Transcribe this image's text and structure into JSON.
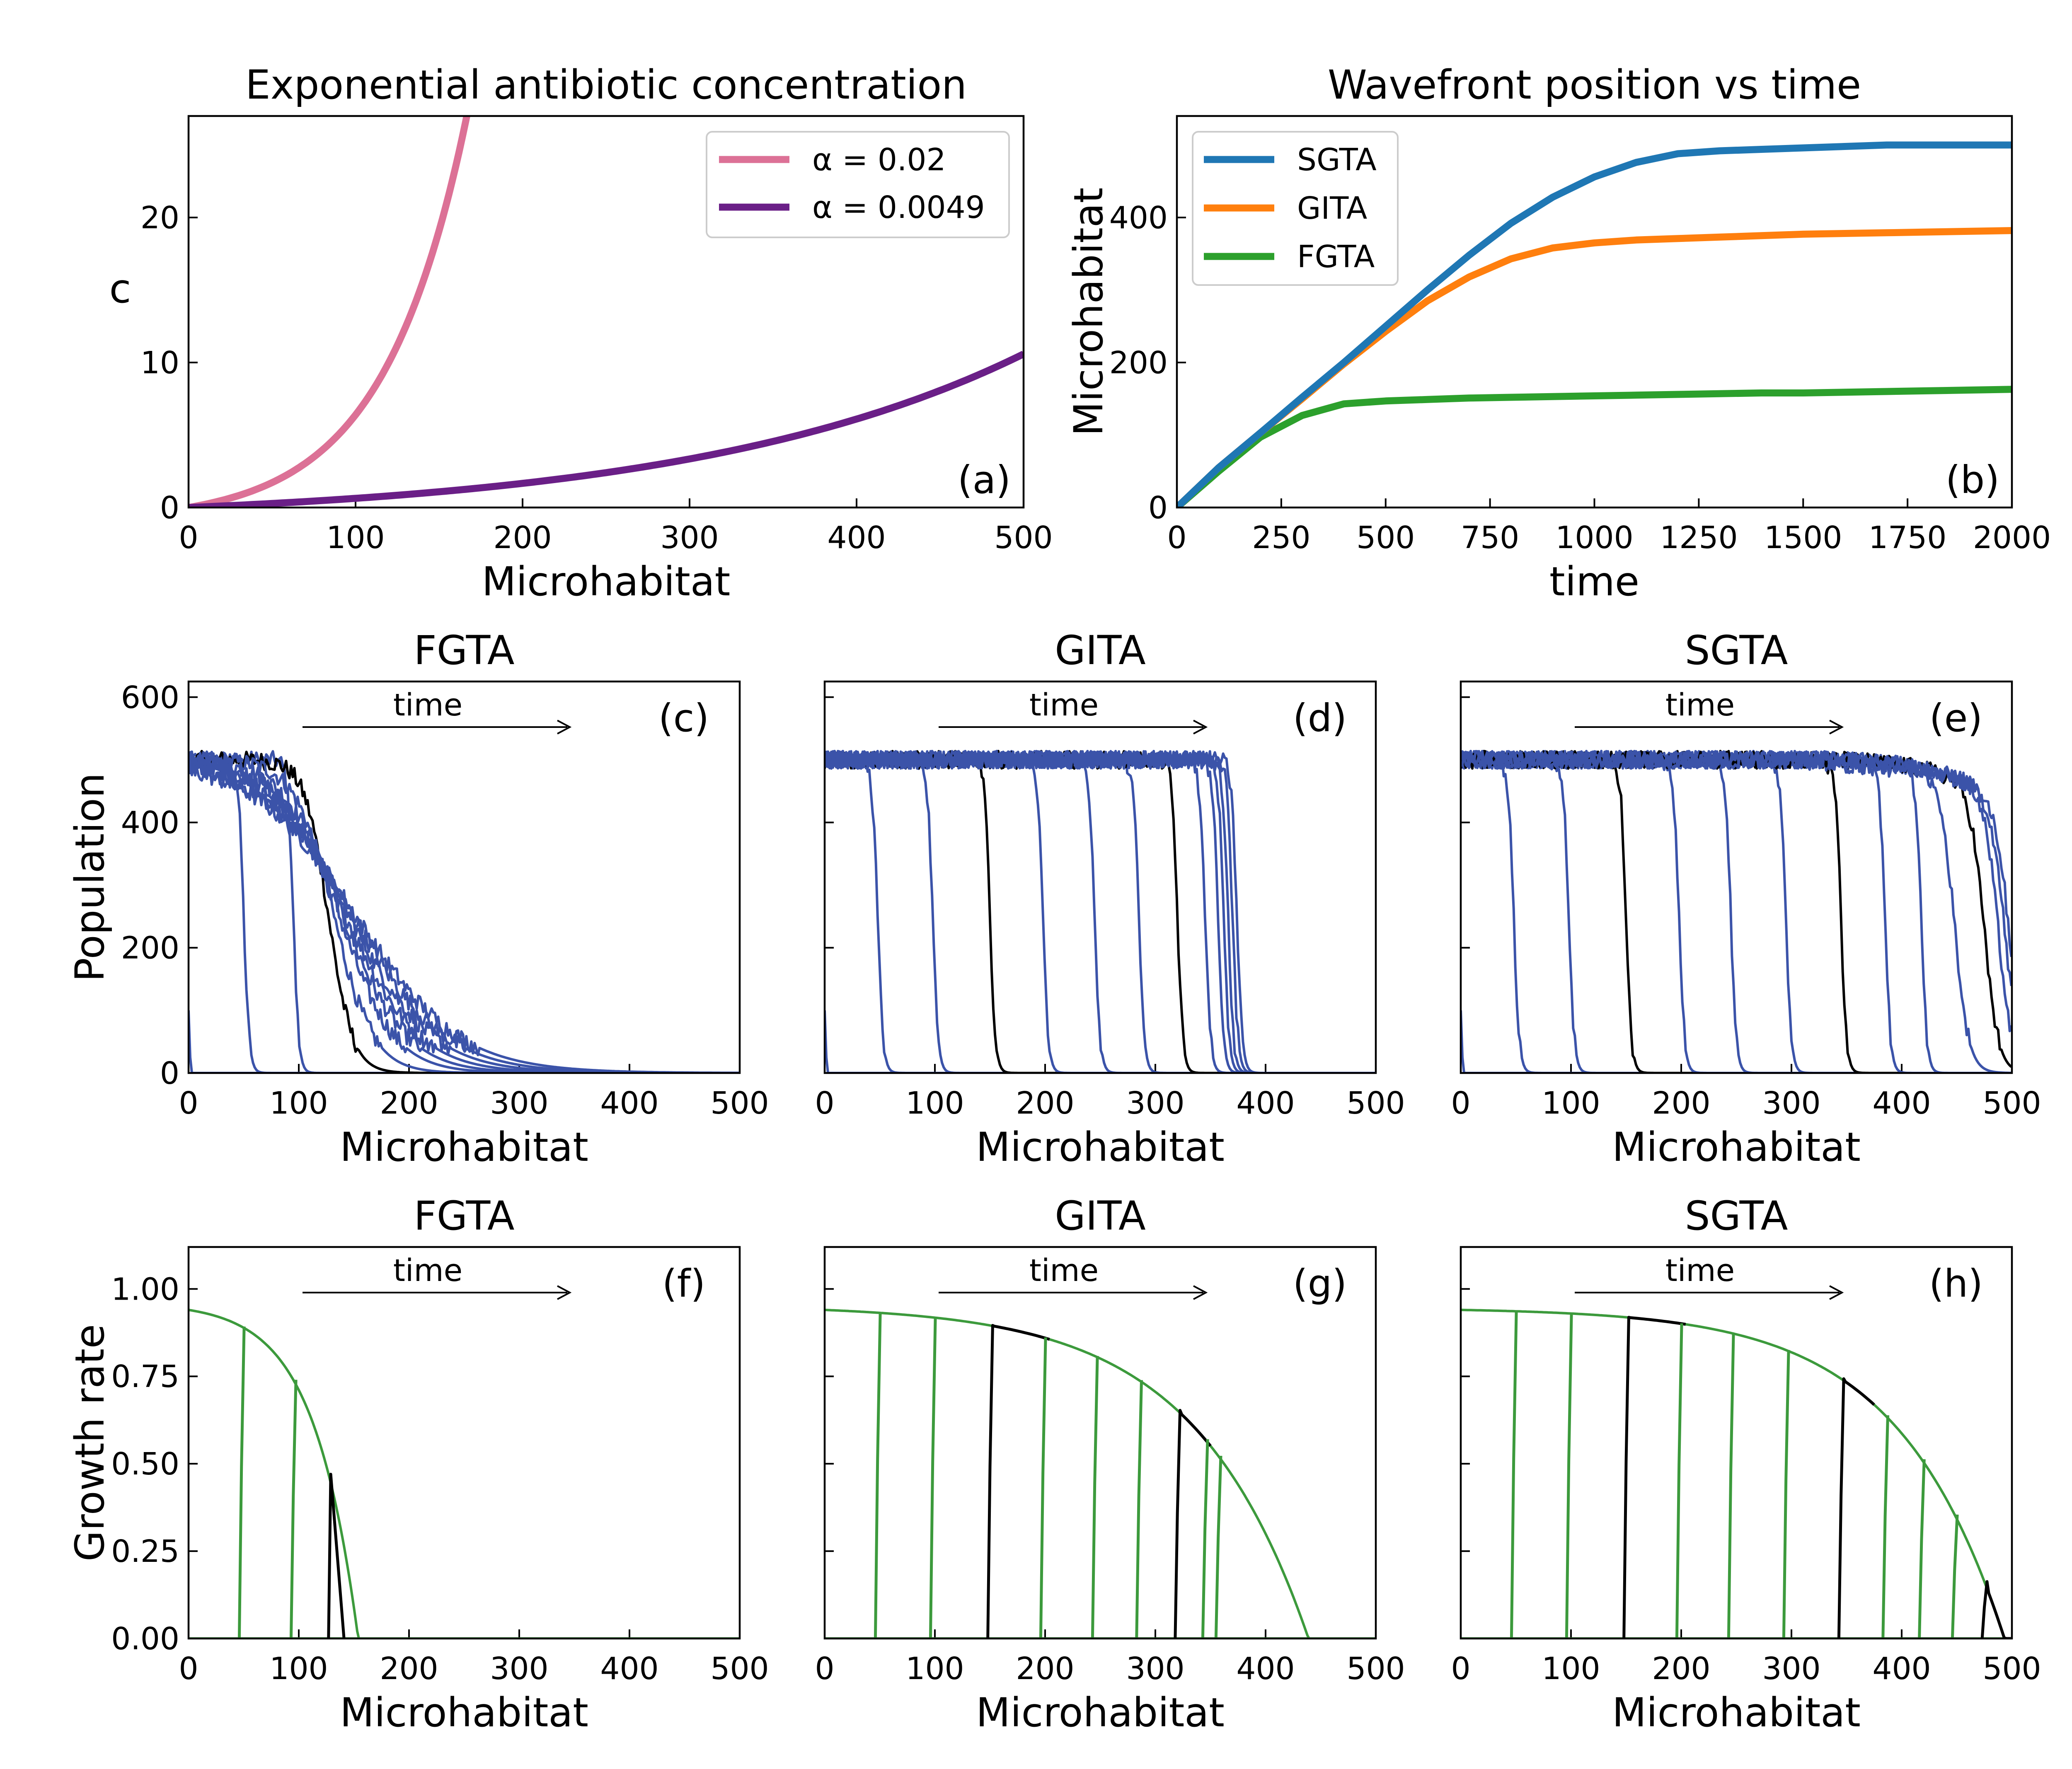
{
  "figure": {
    "colors": {
      "pink": "#dc7196",
      "purple": "#6a1f87",
      "blue": "#1f77b4",
      "orange": "#ff7f0e",
      "green": "#2ca02c",
      "profile_blue": "#3b53a9",
      "profile_green": "#3c9a3c",
      "black": "#000000"
    }
  },
  "chart_data": [
    {
      "id": "a",
      "type": "line",
      "title": "Exponential antibiotic concentration",
      "xlabel": "Microhabitat",
      "ylabel": "c",
      "panel_label": "(a)",
      "xlim": [
        0,
        500
      ],
      "ylim": [
        0,
        27
      ],
      "xticks": [
        0,
        100,
        200,
        300,
        400,
        500
      ],
      "yticks": [
        0,
        10,
        20
      ],
      "legend": "top-right",
      "grid": false,
      "series": [
        {
          "name": "α = 0.02",
          "color": "#dc7196",
          "func": "exp",
          "alpha": 0.02,
          "x_end": 168
        },
        {
          "name": "α = 0.0049",
          "color": "#6a1f87",
          "func": "exp",
          "alpha": 0.0049,
          "x_end": 500
        }
      ]
    },
    {
      "id": "b",
      "type": "line",
      "title": "Wavefront position vs time",
      "xlabel": "time",
      "ylabel": "Microhabitat",
      "panel_label": "(b)",
      "xlim": [
        0,
        2000
      ],
      "ylim": [
        0,
        540
      ],
      "xticks": [
        0,
        250,
        500,
        750,
        1000,
        1250,
        1500,
        1750,
        2000
      ],
      "yticks": [
        0,
        200,
        400
      ],
      "legend": "top-left",
      "grid": false,
      "series": [
        {
          "name": "SGTA",
          "color": "#1f77b4",
          "x": [
            0,
            100,
            200,
            300,
            400,
            500,
            600,
            700,
            800,
            900,
            1000,
            1100,
            1200,
            1300,
            1400,
            1500,
            1600,
            1700,
            1800,
            1900,
            2000
          ],
          "y": [
            0,
            55,
            103,
            152,
            200,
            250,
            300,
            348,
            392,
            428,
            456,
            476,
            488,
            492,
            494,
            496,
            498,
            500,
            500,
            500,
            500
          ]
        },
        {
          "name": "GITA",
          "color": "#ff7f0e",
          "x": [
            0,
            100,
            200,
            300,
            400,
            500,
            600,
            700,
            800,
            900,
            1000,
            1100,
            1200,
            1300,
            1400,
            1500,
            1600,
            1700,
            1800,
            1900,
            2000
          ],
          "y": [
            0,
            55,
            103,
            150,
            198,
            243,
            285,
            318,
            343,
            358,
            365,
            369,
            371,
            373,
            375,
            377,
            378,
            379,
            380,
            381,
            382
          ]
        },
        {
          "name": "FGTA",
          "color": "#2ca02c",
          "x": [
            0,
            100,
            200,
            300,
            400,
            500,
            600,
            700,
            800,
            900,
            1000,
            1100,
            1200,
            1300,
            1400,
            1500,
            1600,
            1700,
            1800,
            1900,
            2000
          ],
          "y": [
            0,
            50,
            97,
            127,
            143,
            147,
            149,
            151,
            152,
            153,
            154,
            155,
            156,
            157,
            158,
            158,
            159,
            160,
            161,
            162,
            163
          ]
        }
      ]
    },
    {
      "id": "c",
      "type": "line",
      "title": "FGTA",
      "xlabel": "Microhabitat",
      "ylabel": "Population",
      "panel_label": "(c)",
      "annotation": "time",
      "xlim": [
        0,
        500
      ],
      "ylim": [
        0,
        625
      ],
      "xticks": [
        0,
        100,
        200,
        300,
        400,
        500
      ],
      "yticks": [
        0,
        200,
        400,
        600
      ],
      "plateau": 500,
      "fronts": [
        0,
        50,
        95,
        127,
        132,
        137,
        140,
        143,
        146,
        149,
        152
      ],
      "black_fronts": [
        127
      ]
    },
    {
      "id": "d",
      "type": "line",
      "title": "GITA",
      "xlabel": "Microhabitat",
      "panel_label": "(d)",
      "annotation": "time",
      "xlim": [
        0,
        500
      ],
      "ylim": [
        0,
        625
      ],
      "xticks": [
        0,
        100,
        200,
        300,
        400,
        500
      ],
      "plateau": 500,
      "fronts": [
        0,
        48,
        98,
        150,
        198,
        245,
        285,
        320,
        345,
        357,
        362,
        366,
        370,
        374
      ],
      "black_fronts": [
        150,
        320
      ]
    },
    {
      "id": "e",
      "type": "line",
      "title": "SGTA",
      "xlabel": "Microhabitat",
      "panel_label": "(e)",
      "annotation": "time",
      "xlim": [
        0,
        500
      ],
      "ylim": [
        0,
        625
      ],
      "xticks": [
        0,
        100,
        200,
        300,
        400,
        500
      ],
      "plateau": 500,
      "fronts": [
        0,
        48,
        98,
        150,
        198,
        245,
        295,
        345,
        385,
        418,
        448,
        475,
        488,
        494,
        498
      ],
      "black_fronts": [
        150,
        345,
        475
      ]
    },
    {
      "id": "f",
      "type": "line",
      "title": "FGTA",
      "xlabel": "Microhabitat",
      "ylabel": "Growth rate",
      "panel_label": "(f)",
      "annotation": "time",
      "xlim": [
        0,
        500
      ],
      "ylim": [
        0,
        1.12
      ],
      "xticks": [
        0,
        100,
        200,
        300,
        400,
        500
      ],
      "yticks": [
        0.0,
        0.25,
        0.5,
        0.75,
        1.0
      ],
      "envelope": {
        "r0": 0.94,
        "alpha": 0.02,
        "base": 1,
        "scale": 35
      },
      "fronts": [
        48,
        95,
        127
      ],
      "black_fronts": [
        127
      ]
    },
    {
      "id": "g",
      "type": "line",
      "title": "GITA",
      "xlabel": "Microhabitat",
      "panel_label": "(g)",
      "annotation": "time",
      "xlim": [
        0,
        500
      ],
      "ylim": [
        0,
        1.12
      ],
      "xticks": [
        0,
        100,
        200,
        300,
        400,
        500
      ],
      "envelope": {
        "r0": 0.94,
        "alpha": 0.0049,
        "base": 1,
        "scale": 10.2
      },
      "fronts": [
        48,
        98,
        150,
        198,
        245,
        285,
        320,
        345,
        357
      ],
      "black_fronts": [
        150,
        320
      ]
    },
    {
      "id": "h",
      "type": "line",
      "title": "SGTA",
      "xlabel": "Microhabitat",
      "panel_label": "(h)",
      "annotation": "time",
      "xlim": [
        0,
        500
      ],
      "ylim": [
        0,
        1.12
      ],
      "xticks": [
        0,
        100,
        200,
        300,
        400,
        500
      ],
      "envelope": {
        "r0": 0.94,
        "alpha": 0.0049,
        "base": 1,
        "scale": 10.2,
        "x0": 0,
        "override": "sgta"
      },
      "fronts": [
        48,
        98,
        150,
        198,
        245,
        295,
        345,
        385,
        418,
        448,
        475
      ],
      "black_fronts": [
        150,
        345,
        475
      ]
    }
  ]
}
